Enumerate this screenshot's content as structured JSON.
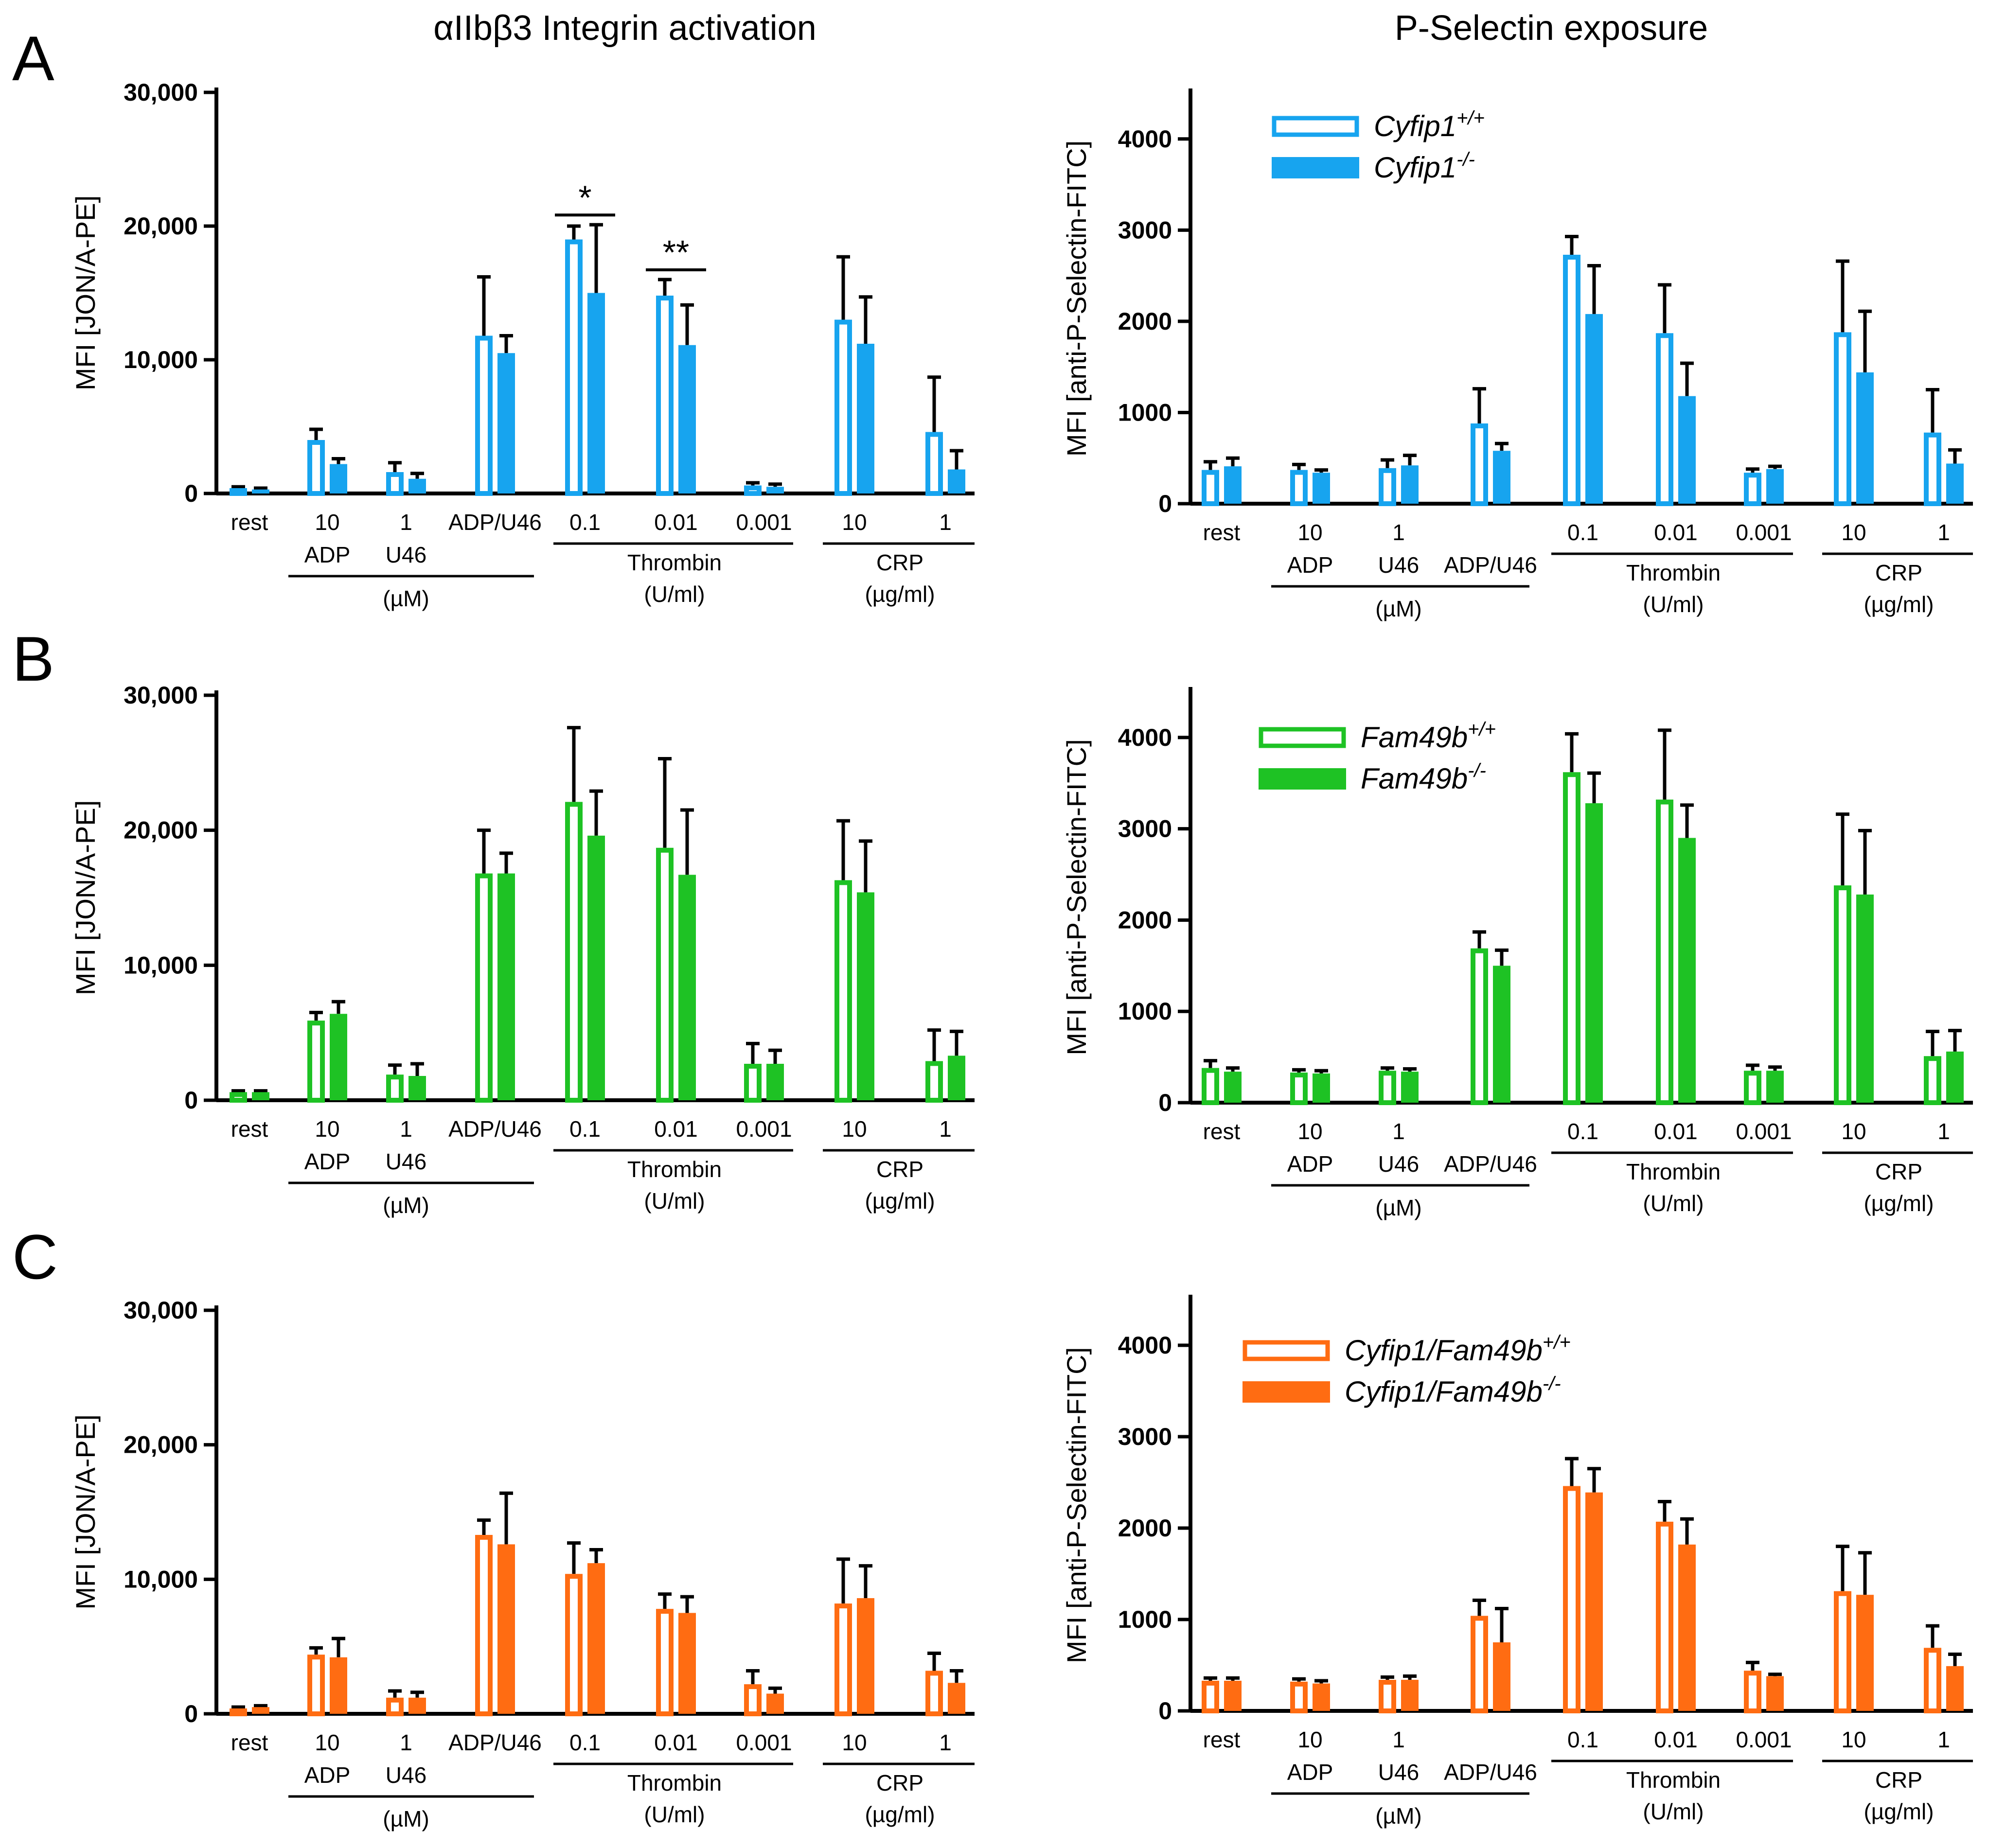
{
  "figure": {
    "col_titles": [
      "αIIbβ3 Integrin activation",
      "P-Selectin exposure"
    ]
  },
  "chart_data": [
    {
      "panel": "A",
      "type": "bar",
      "color": "#17a4ef",
      "ylabel": "MFI [JON/A-PE]",
      "ylim": [
        0,
        30000
      ],
      "yticks": [
        0,
        10000,
        20000,
        30000
      ],
      "ytick_labels": [
        "0",
        "10,000",
        "20,000",
        "30,000"
      ],
      "categories": [
        "rest",
        "10 ADP",
        "1 U46",
        "ADP/U46",
        "0.1 Thrombin",
        "0.01 Thrombin",
        "0.001 Thrombin",
        "10 CRP",
        "1 CRP"
      ],
      "series": [
        {
          "name": "Cyfip1+/+",
          "style": "open",
          "values": [
            400,
            4000,
            1600,
            11800,
            19000,
            14800,
            600,
            13000,
            4600
          ],
          "errors": [
            100,
            800,
            700,
            4400,
            1000,
            1200,
            200,
            4700,
            4100
          ]
        },
        {
          "name": "Cyfip1-/-",
          "style": "filled",
          "values": [
            300,
            2200,
            1100,
            10500,
            15000,
            11100,
            500,
            11200,
            1800
          ],
          "errors": [
            100,
            400,
            400,
            1300,
            5100,
            3000,
            200,
            3500,
            1400
          ]
        }
      ],
      "significance": [
        {
          "group": 4,
          "label": "*"
        },
        {
          "group": 5,
          "label": "**"
        }
      ]
    },
    {
      "panel": "A",
      "type": "bar",
      "color": "#17a4ef",
      "ylabel": "MFI [anti-P-Selectin-FITC]",
      "ylim": [
        0,
        4500
      ],
      "yticks": [
        0,
        1000,
        2000,
        3000,
        4000
      ],
      "ytick_labels": [
        "0",
        "1000",
        "2000",
        "3000",
        "4000"
      ],
      "categories": [
        "rest",
        "10 ADP",
        "1 U46",
        "ADP/U46",
        "0.1 Thrombin",
        "0.01 Thrombin",
        "0.001 Thrombin",
        "10 CRP",
        "1 CRP"
      ],
      "legend": {
        "show": true,
        "labels": [
          "Cyfip1",
          "Cyfip1"
        ],
        "sups": [
          "+/+",
          "-/-"
        ]
      },
      "series": [
        {
          "name": "Cyfip1+/+",
          "style": "open",
          "values": [
            370,
            370,
            390,
            880,
            2730,
            1870,
            340,
            1880,
            780
          ],
          "errors": [
            90,
            60,
            90,
            380,
            200,
            530,
            40,
            780,
            470
          ]
        },
        {
          "name": "Cyfip1-/-",
          "style": "filled",
          "values": [
            410,
            340,
            420,
            580,
            2080,
            1180,
            380,
            1440,
            440
          ],
          "errors": [
            90,
            30,
            110,
            80,
            530,
            360,
            30,
            670,
            150
          ]
        }
      ]
    },
    {
      "panel": "B",
      "type": "bar",
      "color": "#1ec224",
      "ylabel": "MFI [JON/A-PE]",
      "ylim": [
        0,
        30000
      ],
      "yticks": [
        0,
        10000,
        20000,
        30000
      ],
      "ytick_labels": [
        "0",
        "10,000",
        "20,000",
        "30,000"
      ],
      "categories": [
        "rest",
        "10 ADP",
        "1 U46",
        "ADP/U46",
        "0.1 Thrombin",
        "0.01 Thrombin",
        "0.001 Thrombin",
        "10 CRP",
        "1 CRP"
      ],
      "series": [
        {
          "name": "Fam49b+/+",
          "style": "open",
          "values": [
            600,
            5900,
            1900,
            16800,
            22100,
            18700,
            2700,
            16300,
            2900
          ],
          "errors": [
            100,
            600,
            700,
            3200,
            5500,
            6600,
            1500,
            4400,
            2300
          ]
        },
        {
          "name": "Fam49b-/-",
          "style": "filled",
          "values": [
            600,
            6400,
            1800,
            16800,
            19600,
            16700,
            2700,
            15400,
            3300
          ],
          "errors": [
            100,
            900,
            900,
            1500,
            3300,
            4800,
            1000,
            3800,
            1800
          ]
        }
      ]
    },
    {
      "panel": "B",
      "type": "bar",
      "color": "#1ec224",
      "ylabel": "MFI [anti-P-Selectin-FITC]",
      "ylim": [
        0,
        4500
      ],
      "yticks": [
        0,
        1000,
        2000,
        3000,
        4000
      ],
      "ytick_labels": [
        "0",
        "1000",
        "2000",
        "3000",
        "4000"
      ],
      "categories": [
        "rest",
        "10 ADP",
        "1 U46",
        "ADP/U46",
        "0.1 Thrombin",
        "0.01 Thrombin",
        "0.001 Thrombin",
        "10 CRP",
        "1 CRP"
      ],
      "legend": {
        "show": true,
        "labels": [
          "Fam49b",
          "Fam49b"
        ],
        "sups": [
          "+/+",
          "-/-"
        ]
      },
      "series": [
        {
          "name": "Fam49b+/+",
          "style": "open",
          "values": [
            380,
            330,
            350,
            1690,
            3620,
            3320,
            350,
            2380,
            510
          ],
          "errors": [
            80,
            30,
            30,
            180,
            420,
            760,
            60,
            780,
            270
          ]
        },
        {
          "name": "Fam49b-/-",
          "style": "filled",
          "values": [
            340,
            320,
            340,
            1500,
            3280,
            2900,
            350,
            2280,
            560
          ],
          "errors": [
            40,
            30,
            30,
            170,
            330,
            360,
            40,
            700,
            230
          ]
        }
      ]
    },
    {
      "panel": "C",
      "type": "bar",
      "color": "#ff6c12",
      "ylabel": "MFI [JON/A-PE]",
      "ylim": [
        0,
        30000
      ],
      "yticks": [
        0,
        10000,
        20000,
        30000
      ],
      "ytick_labels": [
        "0",
        "10,000",
        "20,000",
        "30,000"
      ],
      "categories": [
        "rest",
        "10 ADP",
        "1 U46",
        "ADP/U46",
        "0.1 Thrombin",
        "0.01 Thrombin",
        "0.001 Thrombin",
        "10 CRP",
        "1 CRP"
      ],
      "series": [
        {
          "name": "Cyfip1/Fam49b+/+",
          "style": "open",
          "values": [
            400,
            4400,
            1200,
            13300,
            10400,
            7800,
            2200,
            8200,
            3200
          ],
          "errors": [
            100,
            500,
            500,
            1100,
            2300,
            1100,
            1000,
            3300,
            1300
          ]
        },
        {
          "name": "Cyfip1/Fam49b-/-",
          "style": "filled",
          "values": [
            500,
            4200,
            1200,
            12600,
            11200,
            7500,
            1500,
            8600,
            2300
          ],
          "errors": [
            100,
            1400,
            400,
            3800,
            1000,
            1200,
            400,
            2400,
            900
          ]
        }
      ]
    },
    {
      "panel": "C",
      "type": "bar",
      "color": "#ff6c12",
      "ylabel": "MFI [anti-P-Selectin-FITC]",
      "ylim": [
        0,
        4500
      ],
      "yticks": [
        0,
        1000,
        2000,
        3000,
        4000
      ],
      "ytick_labels": [
        "0",
        "1000",
        "2000",
        "3000",
        "4000"
      ],
      "categories": [
        "rest",
        "10 ADP",
        "1 U46",
        "ADP/U46",
        "0.1 Thrombin",
        "0.01 Thrombin",
        "0.001 Thrombin",
        "10 CRP",
        "1 CRP"
      ],
      "legend": {
        "show": true,
        "labels": [
          "Cyfip1/Fam49b",
          "Cyfip1/Fam49b"
        ],
        "sups": [
          "+/+",
          "-/-"
        ]
      },
      "series": [
        {
          "name": "Cyfip1/Fam49b+/+",
          "style": "open",
          "values": [
            330,
            320,
            340,
            1040,
            2460,
            2070,
            440,
            1310,
            690
          ],
          "errors": [
            30,
            30,
            30,
            170,
            300,
            220,
            90,
            490,
            240
          ]
        },
        {
          "name": "Cyfip1/Fam49b-/-",
          "style": "filled",
          "values": [
            330,
            300,
            340,
            750,
            2390,
            1820,
            380,
            1270,
            490
          ],
          "errors": [
            30,
            30,
            40,
            370,
            260,
            280,
            20,
            460,
            130
          ]
        }
      ]
    }
  ],
  "x_axis": {
    "tick_labels": [
      "rest",
      "10",
      "1",
      "",
      "0.1",
      "0.01",
      "0.001",
      "10",
      "1"
    ],
    "group_labels": [
      {
        "label": "ADP",
        "index": 1
      },
      {
        "label": "U46",
        "index": 2
      },
      {
        "label": "ADP/U46",
        "index": 3
      }
    ],
    "bracket_groups": [
      {
        "label": "Thrombin",
        "unit": "(U/ml)",
        "from": 4,
        "to": 6
      },
      {
        "label": "CRP",
        "unit": "(µg/ml)",
        "from": 7,
        "to": 8
      }
    ],
    "micro_bracket": {
      "label": "(µM)",
      "from": 1,
      "to": 3
    }
  }
}
